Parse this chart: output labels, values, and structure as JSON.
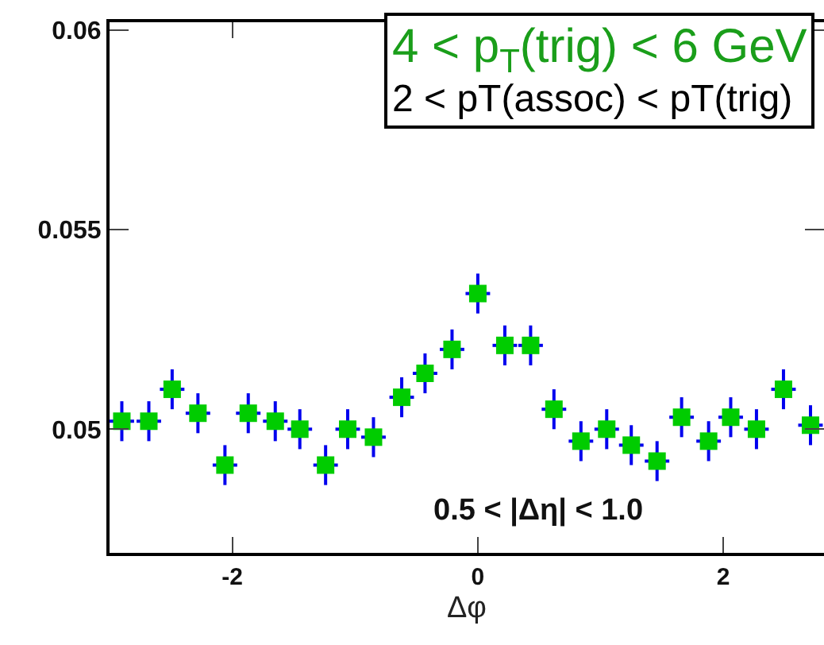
{
  "chart_data": {
    "type": "scatter",
    "xlabel": "Δφ",
    "x": [
      -2.9,
      -2.68,
      -2.49,
      -2.28,
      -2.06,
      -1.87,
      -1.65,
      -1.45,
      -1.24,
      -1.06,
      -0.85,
      -0.62,
      -0.43,
      -0.21,
      0.0,
      0.22,
      0.43,
      0.62,
      0.84,
      1.05,
      1.25,
      1.46,
      1.66,
      1.88,
      2.06,
      2.27,
      2.49,
      2.71
    ],
    "series": [
      {
        "color": "#00cc00",
        "values": [
          0.0502,
          0.0502,
          0.051,
          0.0504,
          0.0491,
          0.0504,
          0.0502,
          0.05,
          0.0491,
          0.05,
          0.0498,
          0.0508,
          0.0514,
          0.052,
          0.0534,
          0.0521,
          0.0521,
          0.0505,
          0.0497,
          0.05,
          0.0496,
          0.0492,
          0.0503,
          0.0497,
          0.0503,
          0.05,
          0.051,
          0.0501
        ],
        "errors": [
          0.0005,
          0.0005,
          0.0005,
          0.0005,
          0.0005,
          0.0005,
          0.0005,
          0.0005,
          0.0005,
          0.0005,
          0.0005,
          0.0005,
          0.0005,
          0.0005,
          0.0005,
          0.0005,
          0.0005,
          0.0005,
          0.0005,
          0.0005,
          0.0005,
          0.0005,
          0.0005,
          0.0005,
          0.0005,
          0.0005,
          0.0005,
          0.0005
        ],
        "xerrors": [
          0.1,
          0.1,
          0.1,
          0.1,
          0.1,
          0.1,
          0.1,
          0.1,
          0.1,
          0.1,
          0.1,
          0.1,
          0.1,
          0.1,
          0.1,
          0.1,
          0.1,
          0.1,
          0.1,
          0.1,
          0.1,
          0.1,
          0.1,
          0.1,
          0.1,
          0.1,
          0.1,
          0.1
        ]
      }
    ],
    "xlim": [
      -3.0,
      2.82
    ],
    "ylim": [
      0.0469,
      0.0602
    ],
    "xticks": [
      -2,
      0,
      2
    ],
    "yticks": [
      0.05,
      0.055,
      0.06
    ],
    "marker": "square",
    "grid": false,
    "annotations": [
      "4 < p$_{T}$(trig) < 6 GeV",
      "2 < pT(assoc) < pT(trig)",
      "0.5 < |Δη| < 1.0"
    ]
  }
}
